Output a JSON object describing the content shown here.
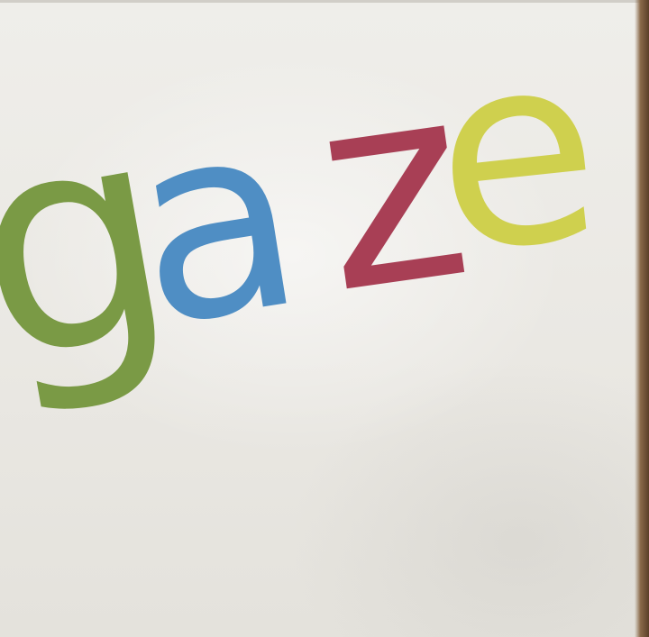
{
  "logo": {
    "letters": [
      {
        "char": "g",
        "color": "#7a9a45"
      },
      {
        "char": "a",
        "color": "#4f8ec4"
      },
      {
        "char": "z",
        "color": "#a83f55"
      },
      {
        "char": "e",
        "color": "#cfd04e"
      }
    ]
  }
}
